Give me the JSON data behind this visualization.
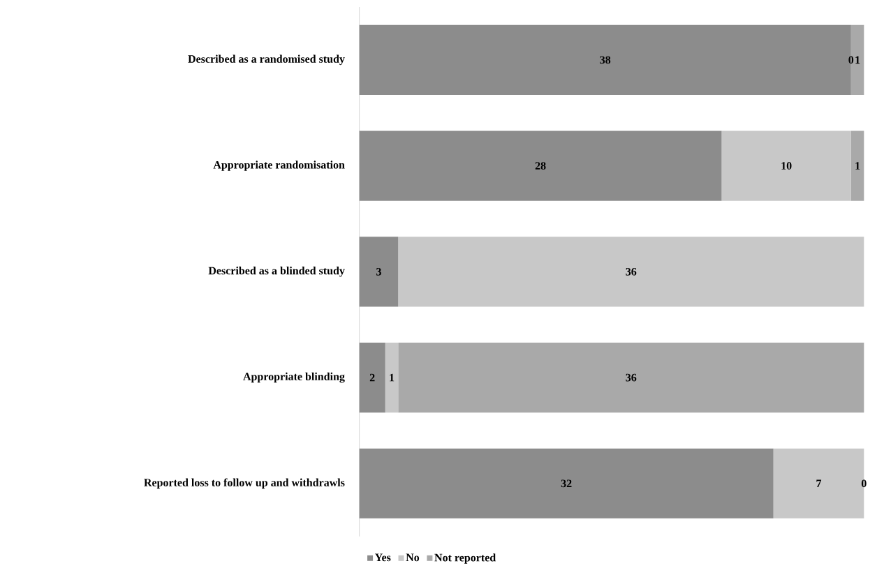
{
  "chart_data": {
    "type": "bar",
    "orientation": "horizontal",
    "stacked": true,
    "legend": "bottom",
    "categories": [
      "Described as a randomised study",
      "Appropriate randomisation",
      "Described as a blinded study",
      "Appropriate blinding",
      "Reported loss to follow up and withdrawls"
    ],
    "series": [
      {
        "name": "Yes",
        "color": "#8c8c8c",
        "values": [
          38,
          28,
          3,
          2,
          32
        ],
        "value_labels": [
          "38",
          "28",
          "3",
          "2",
          "32"
        ]
      },
      {
        "name": "No",
        "color": "#c8c8c8",
        "values": [
          0,
          10,
          36,
          1,
          7
        ],
        "value_labels": [
          "0",
          "10",
          "36",
          "1",
          "7"
        ]
      },
      {
        "name": "Not reported",
        "color": "#a9a9a9",
        "values": [
          1,
          1,
          0,
          36,
          0
        ],
        "value_labels": [
          "1",
          "1",
          null,
          "36",
          "0"
        ]
      }
    ]
  }
}
